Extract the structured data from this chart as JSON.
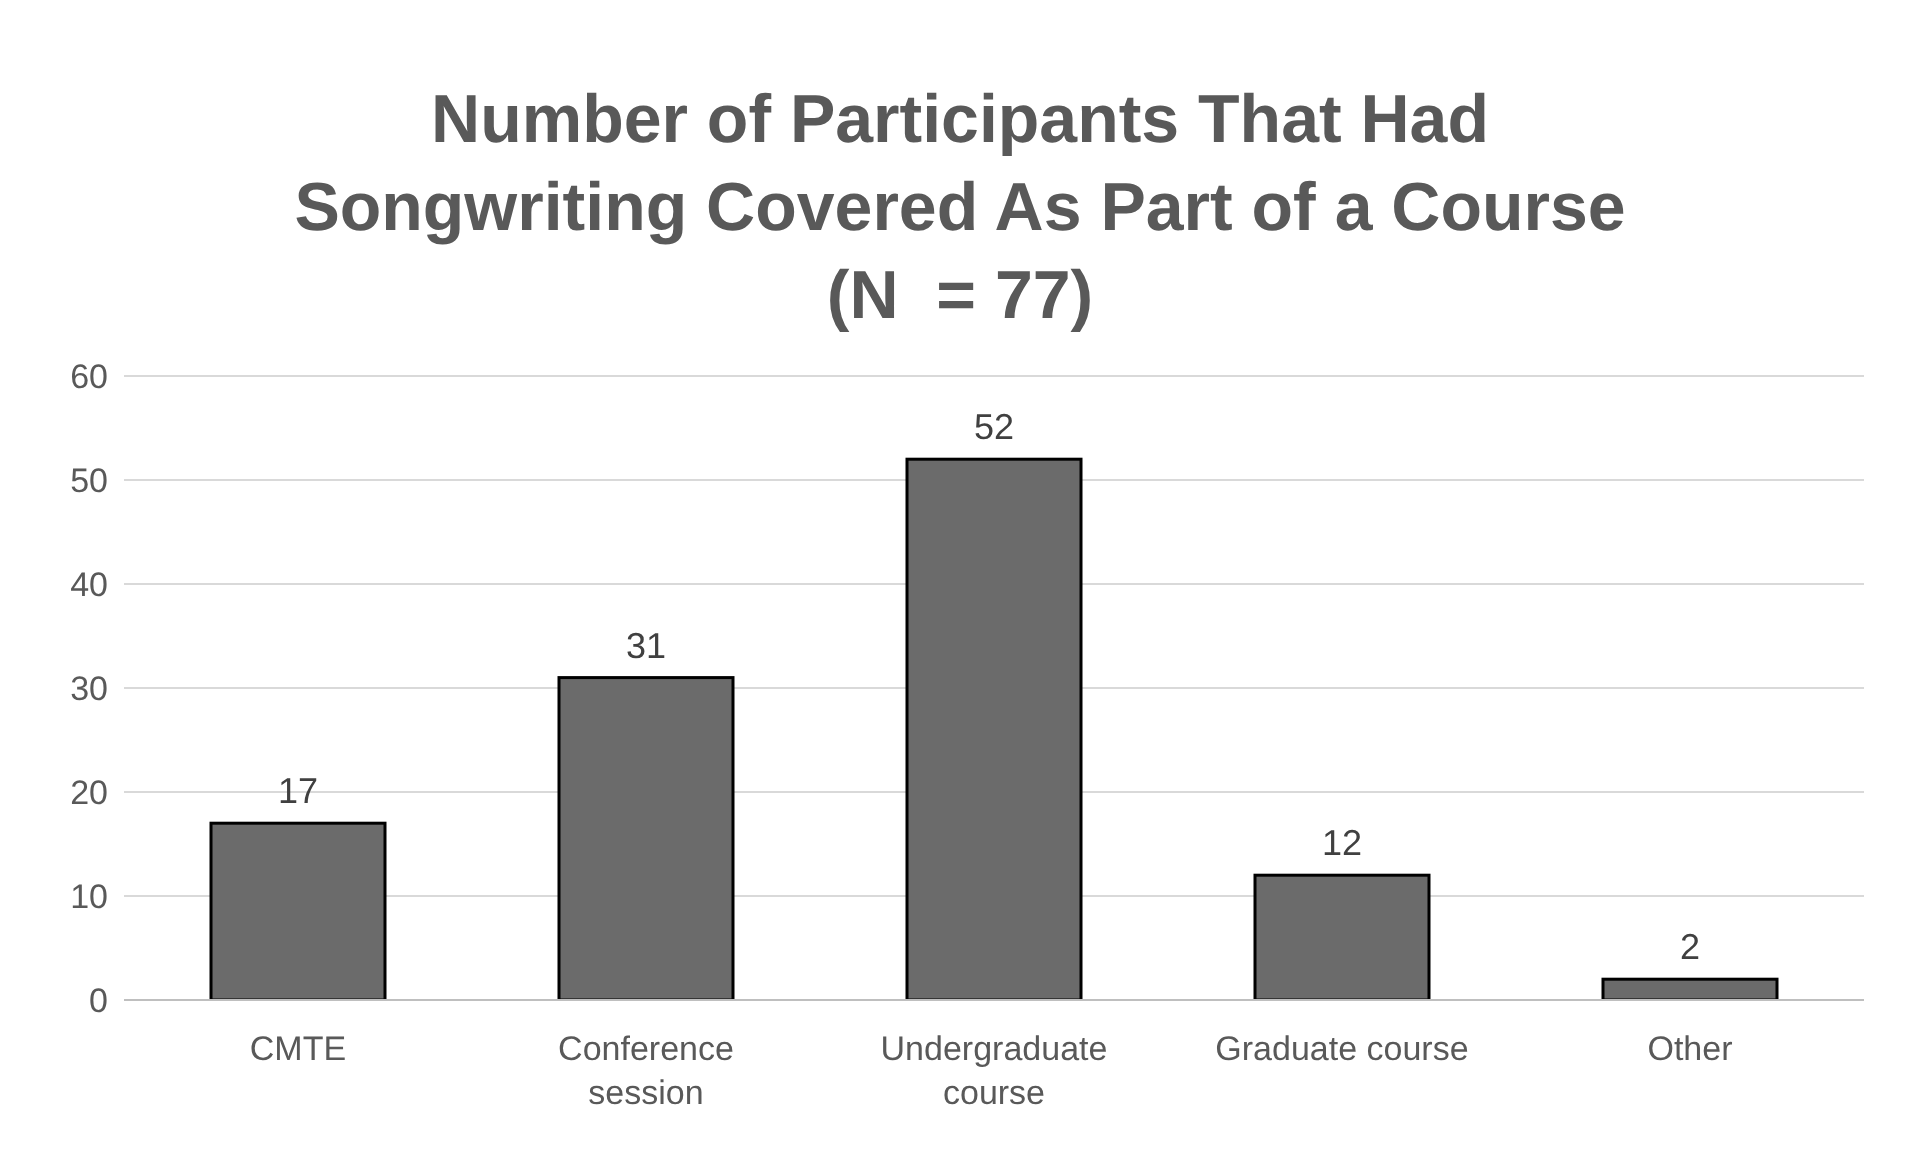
{
  "chart_data": {
    "type": "bar",
    "title": "Number of Participants That Had\nSongwriting Covered As Part of a Course\n(N  = 77)",
    "categories": [
      "CMTE",
      "Conference session",
      "Undergraduate course",
      "Graduate course",
      "Other"
    ],
    "values": [
      17,
      31,
      52,
      12,
      2
    ],
    "color": "#6b6b6b",
    "ylim": [
      0,
      60
    ],
    "yticks": [
      0,
      10,
      20,
      30,
      40,
      50,
      60
    ],
    "grid": "y",
    "data_labels": true
  }
}
